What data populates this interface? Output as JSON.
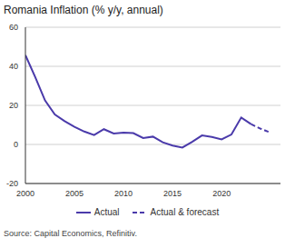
{
  "chart_data": {
    "type": "line",
    "title": "Romania Inflation (% y/y, annual)",
    "source": "Source: Capital Economics, Refinitiv.",
    "x": [
      2000,
      2001,
      2002,
      2003,
      2004,
      2005,
      2006,
      2007,
      2008,
      2009,
      2010,
      2011,
      2012,
      2013,
      2014,
      2015,
      2016,
      2017,
      2018,
      2019,
      2020,
      2021,
      2022,
      2023,
      2024,
      2025
    ],
    "series": [
      {
        "name": "Actual",
        "color": "#4a3aaa",
        "line_style": "solid",
        "values": [
          45.7,
          34.5,
          22.5,
          15.3,
          11.9,
          9.0,
          6.6,
          4.8,
          7.8,
          5.6,
          6.1,
          5.8,
          3.3,
          4.0,
          1.1,
          -0.6,
          -1.6,
          1.3,
          4.6,
          3.8,
          2.6,
          5.1,
          13.8,
          10.4,
          null,
          null
        ]
      },
      {
        "name": "Actual & forecast",
        "color": "#4a3aaa",
        "line_style": "dashed",
        "values": [
          null,
          null,
          null,
          null,
          null,
          null,
          null,
          null,
          null,
          null,
          null,
          null,
          null,
          null,
          null,
          null,
          null,
          null,
          null,
          null,
          null,
          null,
          null,
          10.4,
          8.0,
          6.0
        ]
      }
    ],
    "xlim": [
      2000,
      2026
    ],
    "xticks": [
      2000,
      2005,
      2010,
      2015,
      2020
    ],
    "ylim": [
      -20,
      60
    ],
    "yticks": [
      -20,
      0,
      20,
      40,
      60
    ],
    "grid": true,
    "legend": "bottom"
  }
}
